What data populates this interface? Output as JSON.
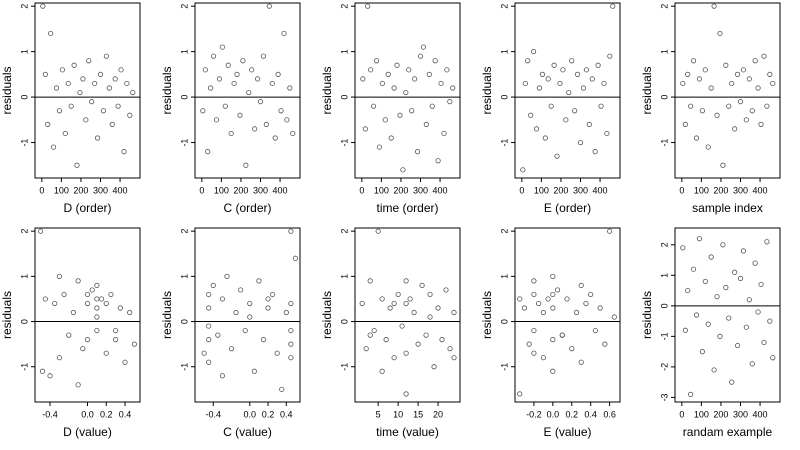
{
  "chart_data": [
    {
      "type": "scatter",
      "x_label": "D (order)",
      "y_label": "residuals",
      "color": "#555555",
      "hline": 0,
      "xlim": [
        -35,
        502
      ],
      "ylim": [
        -1.78,
        2.07
      ],
      "xticks": [
        0,
        100,
        200,
        300,
        400
      ],
      "yticks": [
        -1,
        0,
        1,
        2
      ],
      "x": [
        5,
        18,
        30,
        45,
        60,
        75,
        90,
        105,
        120,
        135,
        150,
        165,
        180,
        195,
        210,
        225,
        240,
        255,
        270,
        285,
        300,
        315,
        330,
        345,
        360,
        375,
        390,
        405,
        420,
        435,
        450,
        465
      ],
      "y": [
        2.0,
        0.5,
        -0.6,
        1.4,
        -1.1,
        0.2,
        -0.3,
        0.6,
        -0.8,
        0.3,
        -0.2,
        0.7,
        -1.5,
        0.1,
        0.4,
        -0.5,
        0.8,
        -0.1,
        0.3,
        -0.9,
        0.5,
        -0.3,
        0.9,
        0.2,
        -0.6,
        0.4,
        -0.2,
        0.6,
        -1.2,
        0.3,
        -0.4,
        0.1
      ]
    },
    {
      "type": "scatter",
      "x_label": "C (order)",
      "y_label": "residuals",
      "color": "#555555",
      "hline": 0,
      "xlim": [
        -35,
        502
      ],
      "ylim": [
        -1.78,
        2.07
      ],
      "xticks": [
        0,
        100,
        200,
        300,
        400
      ],
      "yticks": [
        -1,
        0,
        1,
        2
      ],
      "x": [
        5,
        18,
        30,
        45,
        60,
        75,
        90,
        105,
        120,
        135,
        150,
        165,
        180,
        195,
        210,
        225,
        240,
        255,
        270,
        285,
        300,
        315,
        330,
        345,
        360,
        375,
        390,
        405,
        420,
        435,
        450,
        465
      ],
      "y": [
        -0.3,
        0.6,
        -1.2,
        0.2,
        0.9,
        -0.5,
        0.4,
        1.1,
        -0.2,
        0.7,
        -0.8,
        0.3,
        0.5,
        -0.4,
        0.8,
        -1.5,
        0.1,
        0.6,
        -0.7,
        0.4,
        -0.1,
        0.9,
        -0.6,
        2.0,
        0.3,
        -0.9,
        0.5,
        -0.3,
        1.4,
        -0.5,
        0.2,
        -0.8
      ]
    },
    {
      "type": "scatter",
      "x_label": "time (order)",
      "y_label": "residuals",
      "color": "#555555",
      "hline": 0,
      "xlim": [
        -35,
        502
      ],
      "ylim": [
        -1.78,
        2.07
      ],
      "xticks": [
        0,
        100,
        200,
        300,
        400
      ],
      "yticks": [
        -1,
        0,
        1,
        2
      ],
      "x": [
        5,
        18,
        30,
        45,
        60,
        75,
        90,
        105,
        120,
        135,
        150,
        165,
        180,
        195,
        210,
        225,
        240,
        255,
        270,
        285,
        300,
        315,
        330,
        345,
        360,
        375,
        390,
        405,
        420,
        435,
        450,
        465
      ],
      "y": [
        0.4,
        -0.7,
        2.0,
        0.6,
        -0.2,
        0.8,
        -1.1,
        0.3,
        -0.5,
        0.5,
        -0.9,
        0.2,
        0.7,
        -0.4,
        -1.6,
        0.1,
        0.6,
        -0.3,
        0.4,
        -1.2,
        0.9,
        1.1,
        -0.6,
        0.5,
        -0.2,
        0.8,
        -1.4,
        0.3,
        -0.8,
        0.6,
        -0.1,
        0.2
      ]
    },
    {
      "type": "scatter",
      "x_label": "E (order)",
      "y_label": "residuals",
      "color": "#555555",
      "hline": 0,
      "xlim": [
        -35,
        502
      ],
      "ylim": [
        -1.78,
        2.07
      ],
      "xticks": [
        0,
        100,
        200,
        300,
        400
      ],
      "yticks": [
        -1,
        0,
        1,
        2
      ],
      "x": [
        5,
        18,
        30,
        45,
        60,
        75,
        90,
        105,
        120,
        135,
        150,
        165,
        180,
        195,
        210,
        225,
        240,
        255,
        270,
        285,
        300,
        315,
        330,
        345,
        360,
        375,
        390,
        405,
        420,
        435,
        450,
        465
      ],
      "y": [
        -1.6,
        0.3,
        0.8,
        -0.4,
        1.0,
        -0.7,
        0.2,
        0.5,
        -0.9,
        0.4,
        -0.2,
        0.7,
        -1.3,
        0.3,
        0.6,
        -0.5,
        0.1,
        0.8,
        -0.3,
        0.5,
        -1.0,
        0.2,
        0.6,
        -0.6,
        0.4,
        -1.2,
        0.7,
        -0.2,
        0.3,
        -0.8,
        0.9,
        2.0
      ]
    },
    {
      "type": "scatter",
      "x_label": "sample index",
      "y_label": "residuals",
      "color": "#555555",
      "hline": 0,
      "xlim": [
        -35,
        502
      ],
      "ylim": [
        -1.78,
        2.07
      ],
      "xticks": [
        0,
        100,
        200,
        300,
        400
      ],
      "yticks": [
        -1,
        0,
        1,
        2
      ],
      "x": [
        5,
        18,
        30,
        45,
        60,
        75,
        90,
        105,
        120,
        135,
        150,
        165,
        180,
        195,
        210,
        225,
        240,
        255,
        270,
        285,
        300,
        315,
        330,
        345,
        360,
        375,
        390,
        405,
        420,
        435,
        450,
        465
      ],
      "y": [
        0.3,
        -0.6,
        0.5,
        -0.2,
        0.8,
        -0.9,
        0.4,
        -0.3,
        0.6,
        -1.1,
        0.2,
        2.0,
        -0.4,
        1.4,
        -1.5,
        0.7,
        -0.2,
        0.3,
        -0.7,
        0.5,
        -0.1,
        0.6,
        -0.5,
        0.4,
        -0.3,
        0.8,
        0.2,
        -0.6,
        0.9,
        -0.2,
        0.5,
        0.3
      ]
    },
    {
      "type": "scatter",
      "x_label": "D (value)",
      "y_label": "residuals",
      "color": "#555555",
      "hline": 0,
      "xlim": [
        -0.56,
        0.56
      ],
      "ylim": [
        -1.78,
        2.07
      ],
      "xticks": [
        -0.4,
        {
          "value": 0,
          "label": "0.0"
        },
        0.2,
        0.4
      ],
      "yticks": [
        -1,
        0,
        1,
        2
      ],
      "x": [
        -0.5,
        -0.45,
        -0.4,
        -0.35,
        -0.3,
        -0.25,
        -0.2,
        -0.15,
        -0.1,
        -0.05,
        0,
        0,
        0.05,
        0.1,
        0.1,
        0.1,
        0.15,
        0.2,
        0.25,
        0.3,
        0.35,
        0.4,
        0.45,
        0.5,
        -0.48,
        -0.3,
        -0.1,
        0.1,
        0.1,
        0.2,
        0.3,
        0.0
      ],
      "y": [
        2.0,
        0.5,
        -1.2,
        0.4,
        -0.8,
        0.6,
        -0.3,
        0.2,
        0.9,
        -0.6,
        0.4,
        -0.4,
        0.7,
        0.8,
        0.3,
        -0.2,
        0.5,
        -0.7,
        0.6,
        -0.4,
        0.3,
        -0.9,
        0.2,
        -0.5,
        -1.1,
        1.0,
        -1.4,
        0.5,
        0.1,
        0.4,
        -0.2,
        0.6
      ]
    },
    {
      "type": "scatter",
      "x_label": "C (value)",
      "y_label": "residuals",
      "color": "#555555",
      "hline": 0,
      "xlim": [
        -0.6,
        0.55
      ],
      "ylim": [
        -1.78,
        2.07
      ],
      "xticks": [
        -0.4,
        {
          "value": 0,
          "label": "0.0"
        },
        0.2,
        0.4
      ],
      "yticks": [
        -1,
        0,
        1,
        2
      ],
      "x": [
        -0.45,
        -0.45,
        -0.45,
        -0.45,
        -0.45,
        -0.4,
        -0.35,
        -0.3,
        -0.25,
        -0.2,
        -0.15,
        -0.1,
        -0.05,
        0,
        0.05,
        0.1,
        0.15,
        0.2,
        0.25,
        0.3,
        0.35,
        0.4,
        0.45,
        0.45,
        0.45,
        0.45,
        0.45,
        0.5,
        -0.3,
        0.0,
        0.2,
        -0.5
      ],
      "y": [
        0.3,
        -0.4,
        0.6,
        -0.9,
        -0.1,
        0.8,
        -0.3,
        0.5,
        1.0,
        -0.6,
        0.2,
        0.7,
        -0.2,
        0.4,
        -1.1,
        0.9,
        -0.4,
        0.3,
        0.6,
        -0.7,
        -1.5,
        0.2,
        -0.5,
        0.4,
        -0.8,
        2.0,
        -0.2,
        1.4,
        -1.2,
        0.1,
        0.5,
        -0.7
      ]
    },
    {
      "type": "scatter",
      "x_label": "time (value)",
      "y_label": "residuals",
      "color": "#555555",
      "hline": 0,
      "xlim": [
        -0.8,
        25.5
      ],
      "ylim": [
        -1.78,
        2.07
      ],
      "xticks": [
        5,
        10,
        15,
        20
      ],
      "yticks": [
        -1,
        0,
        1,
        2
      ],
      "x": [
        1,
        2,
        3,
        4,
        5,
        6,
        7,
        8,
        9,
        10,
        11,
        12,
        12,
        12,
        13,
        14,
        15,
        16,
        17,
        18,
        19,
        20,
        21,
        22,
        23,
        24,
        6,
        12,
        18,
        24,
        3,
        9
      ],
      "y": [
        0.4,
        -0.6,
        0.9,
        -0.2,
        2.0,
        0.5,
        -0.4,
        0.3,
        -0.8,
        0.6,
        -0.1,
        0.4,
        -0.7,
        -1.6,
        0.5,
        0.2,
        -0.5,
        0.8,
        -0.3,
        0.6,
        -1.0,
        0.3,
        -0.4,
        0.7,
        -0.6,
        0.2,
        -1.1,
        0.9,
        0.1,
        -0.8,
        -0.3,
        0.4
      ]
    },
    {
      "type": "scatter",
      "x_label": "E (value)",
      "y_label": "residuals",
      "color": "#555555",
      "hline": 0,
      "xlim": [
        -0.4,
        0.71
      ],
      "ylim": [
        -1.78,
        2.07
      ],
      "xticks": [
        -0.2,
        {
          "value": 0,
          "label": "0.0"
        },
        0.2,
        0.4,
        0.6
      ],
      "yticks": [
        -1,
        0,
        1,
        2
      ],
      "x": [
        -0.35,
        -0.3,
        -0.25,
        -0.2,
        -0.2,
        -0.2,
        -0.15,
        -0.1,
        -0.05,
        0,
        0,
        0,
        0,
        0.05,
        0.1,
        0.15,
        0.2,
        0.25,
        0.3,
        0.35,
        0.4,
        0.45,
        0.5,
        0.55,
        0.6,
        0.65,
        -0.2,
        -0.1,
        0.0,
        0.1,
        -0.35,
        0.3
      ],
      "y": [
        -1.6,
        0.3,
        -0.5,
        0.6,
        -0.2,
        0.9,
        0.4,
        -0.8,
        0.5,
        1.0,
        -0.4,
        0.3,
        -1.1,
        0.7,
        -0.3,
        0.5,
        -0.6,
        0.2,
        -0.9,
        0.4,
        0.6,
        -0.2,
        0.3,
        -0.5,
        2.0,
        0.1,
        -0.7,
        0.2,
        0.6,
        -0.3,
        0.5,
        0.8
      ]
    },
    {
      "type": "scatter",
      "x_label": "randam example",
      "y_label": "residuals",
      "color": "#555555",
      "hline": 0,
      "xlim": [
        -35,
        502
      ],
      "ylim": [
        -3.15,
        2.55
      ],
      "xticks": [
        0,
        100,
        200,
        300,
        400
      ],
      "yticks": [
        -3,
        -2,
        -1,
        0,
        1,
        2
      ],
      "x": [
        5,
        18,
        30,
        45,
        60,
        75,
        90,
        105,
        120,
        135,
        150,
        165,
        180,
        195,
        210,
        225,
        240,
        255,
        270,
        285,
        300,
        315,
        330,
        345,
        360,
        375,
        390,
        405,
        420,
        435,
        450,
        465
      ],
      "y": [
        1.9,
        -0.8,
        0.5,
        -2.9,
        1.2,
        -0.3,
        2.2,
        -1.5,
        0.8,
        -0.6,
        1.6,
        -2.1,
        0.3,
        -1.0,
        2.0,
        0.6,
        -0.4,
        -2.5,
        1.1,
        -1.3,
        0.9,
        1.8,
        -0.7,
        0.2,
        -1.9,
        1.4,
        -0.2,
        0.7,
        -1.2,
        2.1,
        -0.5,
        -1.7
      ]
    }
  ]
}
